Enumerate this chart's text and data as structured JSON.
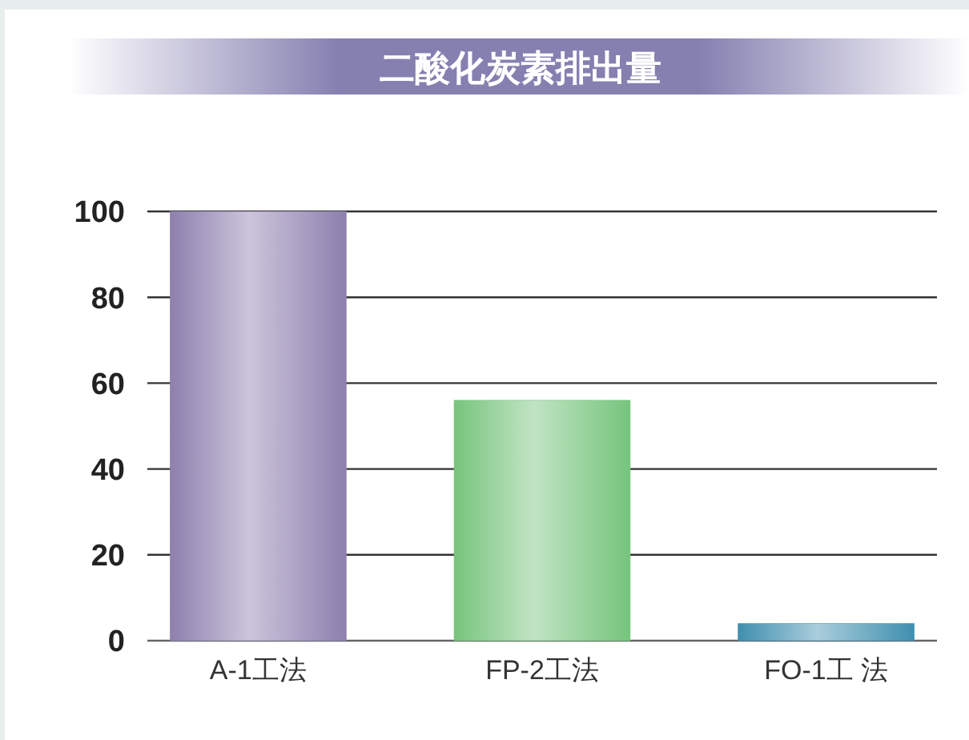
{
  "chart_data": {
    "type": "bar",
    "title": "二酸化炭素排出量",
    "categories": [
      "A-1工法",
      "FP-2工法",
      "FO-1工 法"
    ],
    "values": [
      100,
      56,
      4
    ],
    "colors": [
      "#8e7fae",
      "#76c47c",
      "#3f8fae"
    ],
    "ylim": [
      0,
      100
    ],
    "yticks": [
      0,
      20,
      40,
      60,
      80,
      100
    ],
    "grid": "y"
  }
}
